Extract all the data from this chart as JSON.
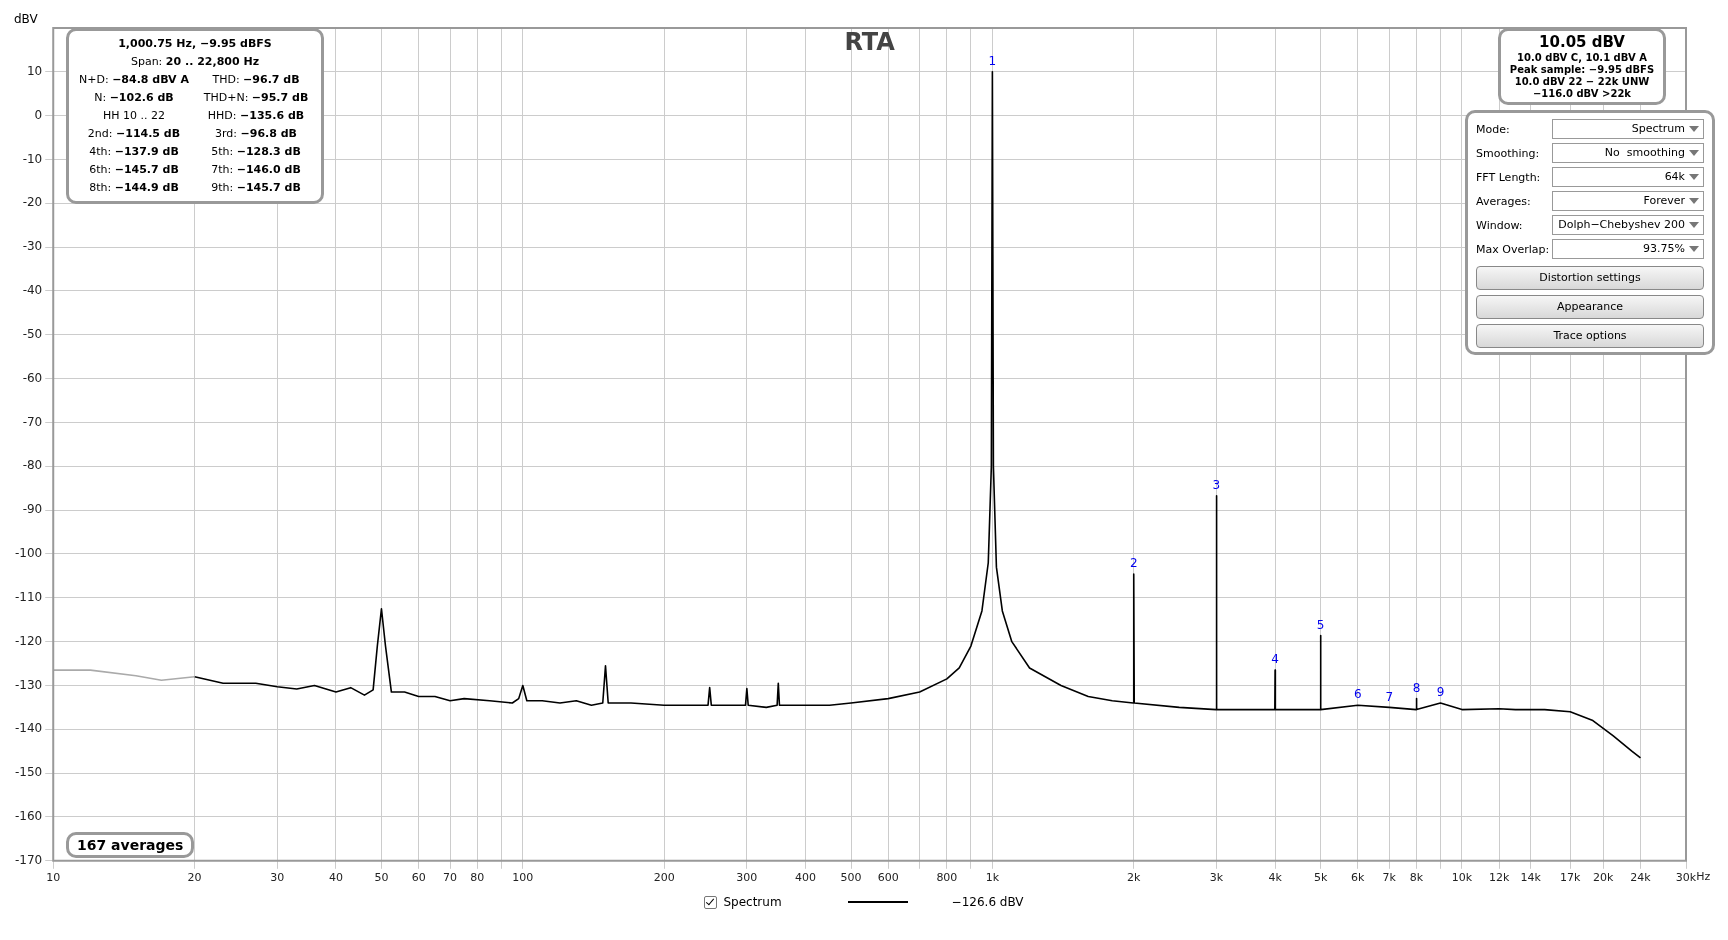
{
  "chart_data": {
    "type": "line",
    "title": "RTA",
    "ylabel": "dBV",
    "xlabel": "Hz",
    "xlim": [
      10,
      30000
    ],
    "ylim": [
      -170,
      20
    ],
    "log": "x",
    "grid": true,
    "legend": "bottom",
    "marker": "none",
    "xticks": [
      10,
      20,
      30,
      40,
      50,
      60,
      70,
      80,
      {
        "value": 90,
        "label": null
      },
      100,
      200,
      300,
      400,
      500,
      600,
      {
        "value": 700,
        "label": null
      },
      800,
      {
        "value": 900,
        "label": null
      },
      {
        "value": 1000,
        "label": "1k"
      },
      {
        "value": 2000,
        "label": "2k"
      },
      {
        "value": 3000,
        "label": "3k"
      },
      {
        "value": 4000,
        "label": "4k"
      },
      {
        "value": 5000,
        "label": "5k"
      },
      {
        "value": 6000,
        "label": "6k"
      },
      {
        "value": 7000,
        "label": "7k"
      },
      {
        "value": 8000,
        "label": "8k"
      },
      {
        "value": 9000,
        "label": null
      },
      {
        "value": 10000,
        "label": "10k"
      },
      {
        "value": 12000,
        "label": "12k"
      },
      {
        "value": 14000,
        "label": "14k"
      },
      {
        "value": 17000,
        "label": "17k"
      },
      {
        "value": 20000,
        "label": "20k"
      },
      {
        "value": 24000,
        "label": "24k"
      },
      {
        "value": 30000,
        "label": "30k"
      }
    ],
    "yticks": [
      -170,
      -160,
      -150,
      -140,
      -130,
      -120,
      -110,
      -100,
      -90,
      -80,
      -70,
      -60,
      -50,
      -40,
      -30,
      -20,
      -10,
      0,
      10
    ],
    "series": [
      {
        "color": "#aaaaaa",
        "x": [
          10,
          12,
          15,
          17,
          20
        ],
        "values": [
          -126.5,
          -126.5,
          -127.8,
          -128.8,
          -128
        ]
      },
      {
        "name": "Spectrum",
        "color": "#000000",
        "x": [
          20,
          23,
          27,
          30,
          33,
          36,
          40,
          43,
          46,
          48,
          49,
          50,
          51,
          52.5,
          56,
          60,
          65,
          70,
          75,
          85,
          95,
          98,
          100,
          102,
          110,
          120,
          130,
          140,
          148,
          150,
          152,
          170,
          200,
          240,
          248,
          250,
          252,
          280,
          298,
          300,
          302,
          330,
          348,
          350,
          352,
          400,
          450,
          500,
          600,
          700,
          800,
          850,
          900,
          950,
          980,
          995,
          1000,
          1005,
          1020,
          1050,
          1100,
          1200,
          1400,
          1600,
          1800,
          1995,
          2000,
          2005,
          2500,
          2995,
          3000,
          3005,
          3500,
          3995,
          4000,
          4005,
          4500,
          4995,
          5000,
          5005,
          6000,
          7000,
          7990,
          8000,
          8010,
          9000,
          10000,
          12000,
          13000,
          15000,
          17000,
          19000,
          21000,
          23000,
          24000
        ],
        "values": [
          -128,
          -129.5,
          -129.5,
          -130.3,
          -130.8,
          -130,
          -131.5,
          -130.5,
          -132.2,
          -131,
          -121,
          -112.5,
          -121,
          -131.5,
          -131.5,
          -132.5,
          -132.5,
          -133.5,
          -133,
          -133.5,
          -134,
          -133,
          -130,
          -133.5,
          -133.5,
          -134,
          -133.5,
          -134.5,
          -134,
          -125.5,
          -134,
          -134,
          -134.5,
          -134.5,
          -134.5,
          -130.5,
          -134.5,
          -134.5,
          -134.5,
          -130.7,
          -134.5,
          -135,
          -134.5,
          -129.5,
          -134.5,
          -134.5,
          -134.5,
          -134,
          -133,
          -131.5,
          -128.5,
          -126,
          -121,
          -113,
          -102,
          -80,
          10,
          -80,
          -103,
          -113,
          -120,
          -126,
          -130,
          -132.5,
          -133.5,
          -134,
          -104.6,
          -134,
          -135,
          -135.5,
          -86.7,
          -135.5,
          -135.5,
          -135.5,
          -126.5,
          -135.5,
          -135.5,
          -135.5,
          -118.6,
          -135.5,
          -134.5,
          -135,
          -135.5,
          -133,
          -135.5,
          -134,
          -135.5,
          -135.3,
          -135.5,
          -135.5,
          -136,
          -138,
          -141.5,
          -145,
          -146.5
        ]
      }
    ],
    "annotations": [
      "1,000.75 Hz, −9.95 dBFS",
      "Span: 20 .. 22,800 Hz",
      "N+D: −84.8 dBV A",
      "THD: −96.7 dB",
      "N: −102.6 dB",
      "THD+N: −95.7 dB",
      "HH 10 .. 22",
      "HHD: −135.6 dB",
      "2nd: −114.5 dB",
      "3rd: −96.8 dB",
      "4th: −137.9 dB",
      "5th: −128.3 dB",
      "6th: −145.7 dB",
      "7th: −146.0 dB",
      "8th: −144.9 dB",
      "9th: −145.7 dB",
      "10.05 dBV",
      "10.0 dBV C, 10.1 dBV A",
      "Peak sample: −9.95 dBFS",
      "10.0 dBV 22 − 22k UNW",
      "−116.0 dBV >22k",
      "Mode:",
      "Spectrum",
      "Smoothing:",
      "No  smoothing",
      "FFT Length:",
      "64k",
      "Averages:",
      "Forever",
      "Window:",
      "Dolph−Chebyshev 200",
      "Max Overlap:",
      "93.75%",
      "Distortion settings",
      "Appearance",
      "Trace options",
      "167 averages",
      "−126.6 dBV",
      {
        "text": "1",
        "x": 1000,
        "y": 10
      },
      {
        "text": "2",
        "x": 2000,
        "y": -104.6
      },
      {
        "text": "3",
        "x": 3000,
        "y": -86.7
      },
      {
        "text": "4",
        "x": 4000,
        "y": -126.5
      },
      {
        "text": "5",
        "x": 5000,
        "y": -118.6
      },
      {
        "text": "6",
        "x": 6000,
        "y": -134.5
      },
      {
        "text": "7",
        "x": 7000,
        "y": -135
      },
      {
        "text": "8",
        "x": 8000,
        "y": -133
      },
      {
        "text": "9",
        "x": 9000,
        "y": -134
      }
    ]
  }
}
